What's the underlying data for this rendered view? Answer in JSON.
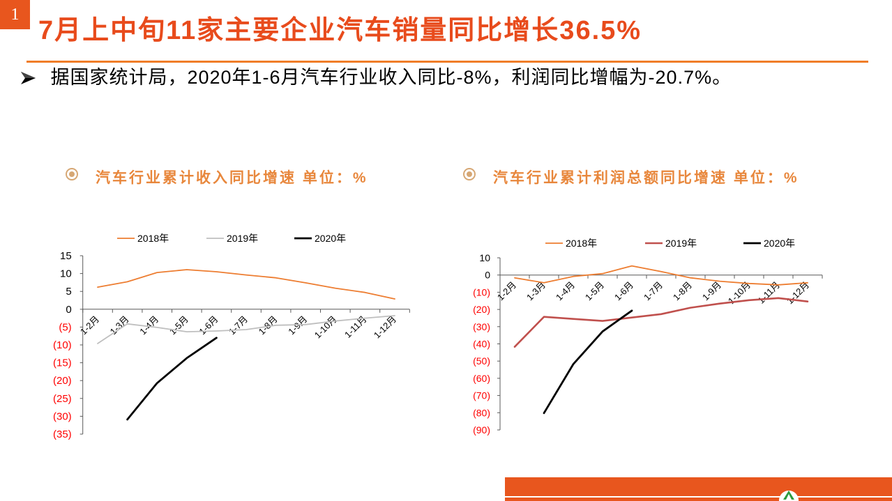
{
  "slide": {
    "number": "1",
    "title": "7月上中旬11家主要企业汽车销量同比增长36.5%",
    "bullet_icon": "arrow-bullet-icon",
    "bullet_text": "据国家统计局，2020年1-6月汽车行业收入同比-8%，利润同比增幅为-20.7%。",
    "chart_title_icon": "radio-bullet-icon",
    "footer_logo_icon": "logo-icon"
  },
  "colors": {
    "accent": "#E8561E",
    "title": "#E84B1C",
    "rule": "#F07D28",
    "chart_title": "#E8873C",
    "chart_title_icon": "#D6A774",
    "negative_tick_label": "#FF0000",
    "logo": "#2E9B3E"
  },
  "chart_data": [
    {
      "type": "line",
      "title": "汽车行业累计收入同比增速 单位：%",
      "categories": [
        "1-2月",
        "1-3月",
        "1-4月",
        "1-5月",
        "1-6月",
        "1-7月",
        "1-8月",
        "1-9月",
        "1-10月",
        "1-11月",
        "1-12月"
      ],
      "series": [
        {
          "name": "2018年",
          "color": "#ED7D31",
          "values": [
            6.2,
            7.7,
            10.3,
            11.1,
            10.5,
            9.6,
            8.8,
            7.4,
            5.9,
            4.7,
            2.9
          ]
        },
        {
          "name": "2019年",
          "color": "#BFBFBF",
          "values": [
            -9.6,
            -4.1,
            -5.1,
            -6.3,
            -6.1,
            -5.7,
            -4.5,
            -4.3,
            -3.3,
            -2.5,
            -1.8
          ]
        },
        {
          "name": "2020年",
          "color": "#000000",
          "values": [
            null,
            -30.9,
            -20.7,
            -13.7,
            -8.0,
            null,
            null,
            null,
            null,
            null,
            null
          ]
        }
      ],
      "ylim": [
        -35,
        15
      ],
      "yticks": [
        15,
        10,
        5,
        0,
        -5,
        -10,
        -15,
        -20,
        -25,
        -30,
        -35
      ],
      "ytick_labels": [
        "15",
        "10",
        "5",
        "0",
        "(5)",
        "(10)",
        "(15)",
        "(20)",
        "(25)",
        "(30)",
        "(35)"
      ],
      "legend": "top",
      "grid": false
    },
    {
      "type": "line",
      "title": "汽车行业累计利润总额同比增速 单位：%",
      "categories": [
        "1-2月",
        "1-3月",
        "1-4月",
        "1-5月",
        "1-6月",
        "1-7月",
        "1-8月",
        "1-9月",
        "1-10月",
        "1-11月",
        "1-12月"
      ],
      "series": [
        {
          "name": "2018年",
          "color": "#ED7D31",
          "values": [
            -1.6,
            -4.5,
            -0.8,
            0.8,
            5.3,
            2.0,
            -1.6,
            -3.6,
            -4.9,
            -5.7,
            -4.5
          ]
        },
        {
          "name": "2019年",
          "color": "#C0504D",
          "values": [
            -41.7,
            -24.3,
            -25.5,
            -26.7,
            -24.7,
            -22.7,
            -19.0,
            -16.6,
            -14.6,
            -13.4,
            -15.4
          ]
        },
        {
          "name": "2020年",
          "color": "#000000",
          "values": [
            null,
            -80.2,
            -51.8,
            -32.8,
            -20.7,
            null,
            null,
            null,
            null,
            null,
            null
          ]
        }
      ],
      "ylim": [
        -90,
        10
      ],
      "yticks": [
        10,
        0,
        -10,
        -20,
        -30,
        -40,
        -50,
        -60,
        -70,
        -80,
        -90
      ],
      "ytick_labels": [
        "10",
        "0",
        "(10)",
        "(20)",
        "(30)",
        "(40)",
        "(50)",
        "(60)",
        "(70)",
        "(80)",
        "(90)"
      ],
      "legend": "top",
      "grid": false
    }
  ]
}
